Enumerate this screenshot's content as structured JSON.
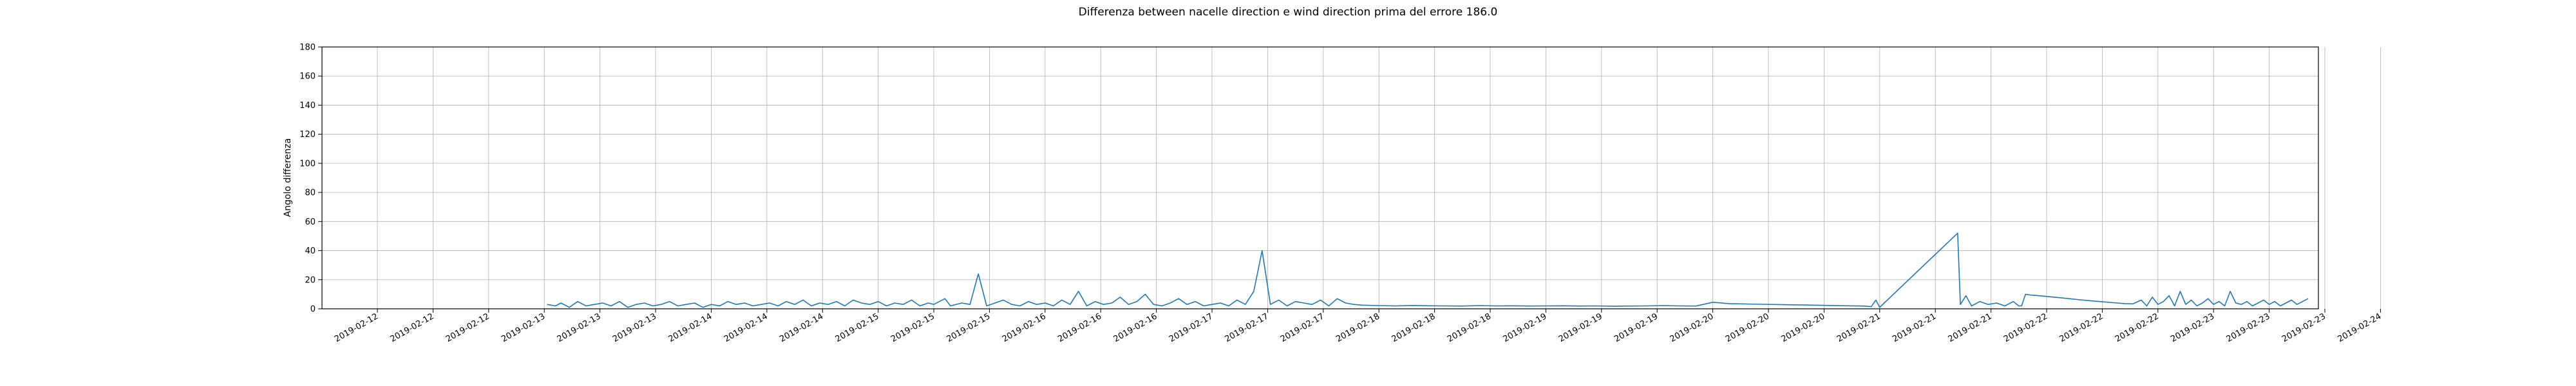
{
  "chart_data": {
    "type": "line",
    "title": "Differenza between nacelle direction e wind direction prima del errore 186.0",
    "xlabel": "",
    "ylabel": "Angolo differenza",
    "ylim": [
      0,
      180
    ],
    "yticks": [
      0,
      20,
      40,
      60,
      80,
      100,
      120,
      140,
      160,
      180
    ],
    "grid": true,
    "line_color": "#1f77b4",
    "xtick_labels": [
      "2019-02-12",
      "2019-02-12",
      "2019-02-12",
      "2019-02-13",
      "2019-02-13",
      "2019-02-13",
      "2019-02-14",
      "2019-02-14",
      "2019-02-14",
      "2019-02-15",
      "2019-02-15",
      "2019-02-15",
      "2019-02-16",
      "2019-02-16",
      "2019-02-16",
      "2019-02-17",
      "2019-02-17",
      "2019-02-17",
      "2019-02-18",
      "2019-02-18",
      "2019-02-18",
      "2019-02-19",
      "2019-02-19",
      "2019-02-19",
      "2019-02-20",
      "2019-02-20",
      "2019-02-20",
      "2019-02-21",
      "2019-02-21",
      "2019-02-21",
      "2019-02-22",
      "2019-02-22",
      "2019-02-22",
      "2019-02-23",
      "2019-02-23",
      "2019-02-23",
      "2019-02-24"
    ],
    "series": [
      {
        "x": [
          3.05,
          3.2,
          3.3,
          3.45,
          3.6,
          3.75,
          3.9,
          4.05,
          4.2,
          4.35,
          4.5,
          4.65,
          4.8,
          4.95,
          5.1,
          5.25,
          5.4,
          5.55,
          5.7,
          5.85,
          6.0,
          6.15,
          6.3,
          6.45,
          6.6,
          6.75,
          6.9,
          7.05,
          7.2,
          7.35,
          7.5,
          7.65,
          7.8,
          7.95,
          8.1,
          8.25,
          8.4,
          8.55,
          8.7,
          8.85,
          9.0,
          9.15,
          9.3,
          9.45,
          9.6,
          9.75,
          9.9,
          10.0,
          10.1,
          10.2,
          10.3,
          10.5,
          10.65,
          10.8,
          10.95,
          11.1,
          11.25,
          11.4,
          11.55,
          11.7,
          11.85,
          12.0,
          12.15,
          12.3,
          12.45,
          12.6,
          12.75,
          12.9,
          13.05,
          13.2,
          13.35,
          13.5,
          13.65,
          13.8,
          13.95,
          14.1,
          14.25,
          14.4,
          14.55,
          14.7,
          14.85,
          15.0,
          15.15,
          15.3,
          15.45,
          15.6,
          15.75,
          15.9,
          16.05,
          16.2,
          16.35,
          16.5,
          16.65,
          16.8,
          16.95,
          17.1,
          17.25,
          17.4,
          17.55,
          17.7,
          18.0,
          18.3,
          18.6,
          18.9,
          19.2,
          19.5,
          19.8,
          20.1,
          20.4,
          20.7,
          21.0,
          21.3,
          21.6,
          21.9,
          22.2,
          22.5,
          22.8,
          23.1,
          23.4,
          23.7,
          24.0,
          24.3,
          24.6,
          24.9,
          25.2,
          25.5,
          25.8,
          26.1,
          26.4,
          26.7,
          26.85,
          26.93,
          27.0,
          28.4,
          28.45,
          28.55,
          28.65,
          28.8,
          28.95,
          29.1,
          29.25,
          29.4,
          29.5,
          29.55,
          29.62,
          29.7,
          29.85,
          30.0,
          30.2,
          30.4,
          30.6,
          30.8,
          31.0,
          31.2,
          31.4,
          31.55,
          31.7,
          31.8,
          31.9,
          32.0,
          32.1,
          32.2,
          32.3,
          32.4,
          32.5,
          32.6,
          32.7,
          32.8,
          32.9,
          33.0,
          33.1,
          33.2,
          33.3,
          33.4,
          33.5,
          33.6,
          33.7,
          33.8,
          33.9,
          34.0,
          34.1,
          34.2,
          34.3,
          34.4,
          34.5,
          34.6,
          34.7
        ],
        "values": [
          3,
          2,
          4,
          1,
          5,
          2,
          3,
          4,
          2,
          5,
          1,
          3,
          4,
          2,
          3,
          5,
          2,
          3,
          4,
          1,
          3,
          2,
          5,
          3,
          4,
          2,
          3,
          4,
          2,
          5,
          3,
          6,
          2,
          4,
          3,
          5,
          2,
          6,
          4,
          3,
          5,
          2,
          4,
          3,
          6,
          2,
          4,
          3,
          5,
          7,
          2,
          4,
          3,
          24,
          2,
          4,
          6,
          3,
          2,
          5,
          3,
          4,
          2,
          6,
          3,
          12,
          2,
          5,
          3,
          4,
          8,
          3,
          5,
          10,
          3,
          2,
          4,
          7,
          3,
          5,
          2,
          3,
          4,
          2,
          6,
          3,
          12,
          40,
          3,
          6,
          2,
          5,
          4,
          3,
          6,
          2,
          7,
          4,
          3,
          2.5,
          2.2,
          2.0,
          2.3,
          2.1,
          2.0,
          1.9,
          2.2,
          2.0,
          2.1,
          1.9,
          2.0,
          2.1,
          1.9,
          2.0,
          1.8,
          1.9,
          2.0,
          2.2,
          2.0,
          1.9,
          4.5,
          3.5,
          3.3,
          3.1,
          2.9,
          2.7,
          2.5,
          2.3,
          2.1,
          1.9,
          1.5,
          6.0,
          1.0,
          52,
          3,
          9,
          2,
          5,
          3,
          4,
          2,
          5,
          2,
          2,
          10,
          9.5,
          9.0,
          8.5,
          7.8,
          7.0,
          6.2,
          5.5,
          4.8,
          4.2,
          3.6,
          3.4,
          6,
          2,
          8,
          3,
          5,
          9,
          2,
          12,
          3,
          6,
          2,
          4,
          7,
          3,
          5,
          2,
          12,
          4,
          3,
          5,
          2,
          4,
          6,
          3,
          5,
          2,
          4,
          6,
          3,
          5,
          7
        ]
      }
    ]
  }
}
